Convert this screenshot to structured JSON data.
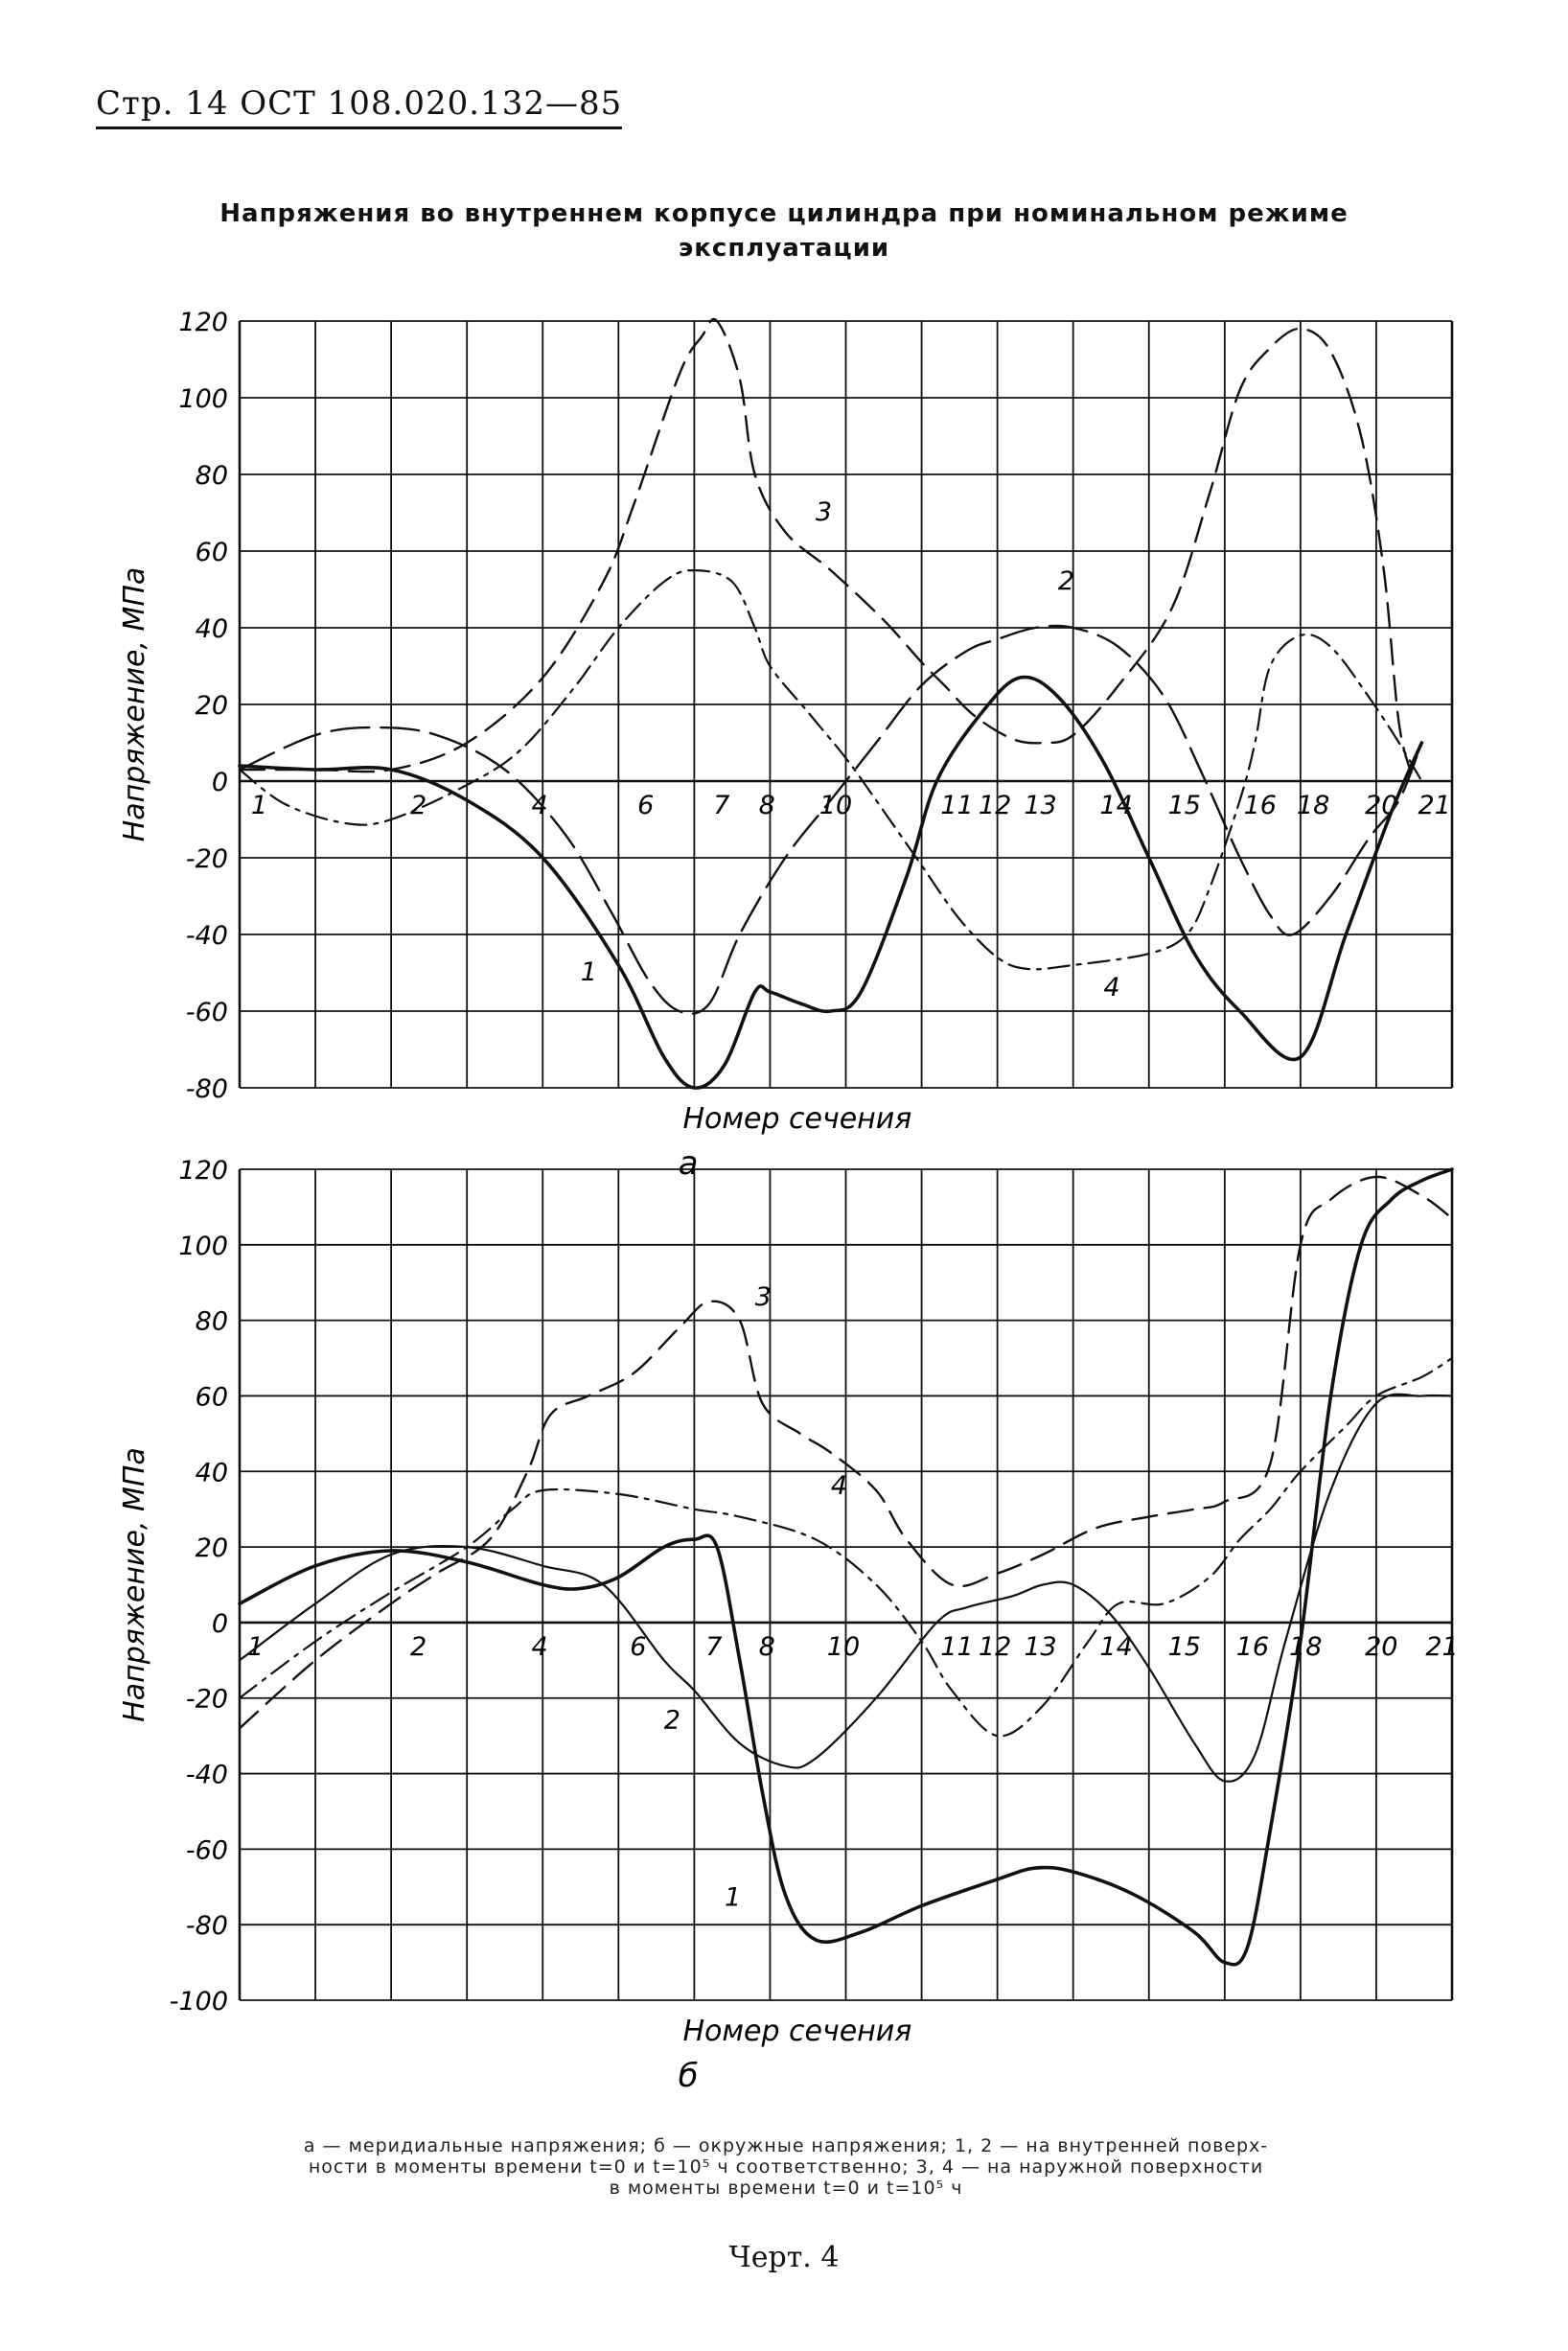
{
  "page_header": "Стр. 14 ОСТ 108.020.132—85",
  "title_line1": "Напряжения во внутреннем корпусе цилиндра при номинальном режиме",
  "title_line2": "эксплуатации",
  "caption_line1": "а — меридиальные напряжения; б — окружные напряжения; 1, 2 — на внутренней поверх-",
  "caption_line2": "ности в моменты времени t=0 и t=10⁵ ч соответственно; 3, 4 — на наружной поверхности",
  "caption_line3": "в моменты времени t=0 и t=10⁵ ч",
  "footer": "Черт. 4",
  "chart_data": [
    {
      "type": "line",
      "panel_label": "а",
      "xlabel": "Номер сечения",
      "ylabel": "Напряжение, МПа",
      "ylim": [
        -80,
        120
      ],
      "yticks": [
        120,
        100,
        80,
        60,
        40,
        20,
        0,
        -20,
        -40,
        -60,
        -80
      ],
      "grid": true,
      "x_tick_labels": [
        {
          "label": "1",
          "x": 0.1
        },
        {
          "label": "2",
          "x": 2.2
        },
        {
          "label": "4",
          "x": 3.8
        },
        {
          "label": "6",
          "x": 5.2
        },
        {
          "label": "7",
          "x": 6.2
        },
        {
          "label": "8",
          "x": 6.8
        },
        {
          "label": "10",
          "x": 7.6
        },
        {
          "label": "11",
          "x": 9.2
        },
        {
          "label": "12",
          "x": 9.7
        },
        {
          "label": "13",
          "x": 10.3
        },
        {
          "label": "14",
          "x": 11.3
        },
        {
          "label": "15",
          "x": 12.2
        },
        {
          "label": "16",
          "x": 13.2
        },
        {
          "label": "18",
          "x": 13.9
        },
        {
          "label": "20",
          "x": 14.8
        },
        {
          "label": "21",
          "x": 15.5
        }
      ],
      "series": [
        {
          "name": "1",
          "style": "solid",
          "label_at": [
            4.5,
            -52
          ],
          "points": [
            [
              0,
              4
            ],
            [
              1,
              3
            ],
            [
              2,
              3
            ],
            [
              3,
              -5
            ],
            [
              4,
              -20
            ],
            [
              5,
              -48
            ],
            [
              5.6,
              -72
            ],
            [
              6,
              -80
            ],
            [
              6.4,
              -74
            ],
            [
              6.8,
              -55
            ],
            [
              7,
              -55
            ],
            [
              7.4,
              -58
            ],
            [
              7.8,
              -60
            ],
            [
              8.2,
              -55
            ],
            [
              8.8,
              -25
            ],
            [
              9.2,
              0
            ],
            [
              9.8,
              18
            ],
            [
              10.3,
              27
            ],
            [
              10.8,
              22
            ],
            [
              11.4,
              5
            ],
            [
              12,
              -20
            ],
            [
              12.6,
              -45
            ],
            [
              13.2,
              -60
            ],
            [
              14,
              -72
            ],
            [
              14.6,
              -40
            ],
            [
              15.2,
              -8
            ],
            [
              15.6,
              10
            ]
          ]
        },
        {
          "name": "2",
          "style": "long-dash",
          "label_at": [
            10.8,
            50
          ],
          "points": [
            [
              0,
              3
            ],
            [
              1,
              12
            ],
            [
              1.8,
              14
            ],
            [
              2.6,
              12
            ],
            [
              3.5,
              3
            ],
            [
              4.3,
              -14
            ],
            [
              4.9,
              -34
            ],
            [
              5.4,
              -52
            ],
            [
              5.8,
              -60
            ],
            [
              6.2,
              -58
            ],
            [
              6.6,
              -40
            ],
            [
              7.2,
              -20
            ],
            [
              7.8,
              -5
            ],
            [
              8.4,
              10
            ],
            [
              9,
              25
            ],
            [
              9.6,
              34
            ],
            [
              10,
              37
            ],
            [
              10.5,
              40
            ],
            [
              11,
              40
            ],
            [
              11.6,
              35
            ],
            [
              12.2,
              22
            ],
            [
              12.7,
              2
            ],
            [
              13.2,
              -20
            ],
            [
              13.6,
              -35
            ],
            [
              13.9,
              -40
            ],
            [
              14.4,
              -30
            ],
            [
              14.9,
              -15
            ],
            [
              15.3,
              -5
            ],
            [
              15.6,
              10
            ]
          ]
        },
        {
          "name": "3",
          "style": "dash",
          "label_at": [
            7.6,
            68
          ],
          "points": [
            [
              0,
              3
            ],
            [
              1,
              3
            ],
            [
              2,
              3
            ],
            [
              3,
              10
            ],
            [
              4,
              27
            ],
            [
              4.8,
              52
            ],
            [
              5.2,
              72
            ],
            [
              5.8,
              106
            ],
            [
              6.1,
              116
            ],
            [
              6.3,
              120
            ],
            [
              6.6,
              105
            ],
            [
              6.8,
              80
            ],
            [
              7.2,
              65
            ],
            [
              7.8,
              55
            ],
            [
              8.5,
              42
            ],
            [
              9,
              31
            ],
            [
              9.3,
              25
            ],
            [
              9.7,
              17
            ],
            [
              10.2,
              11
            ],
            [
              10.6,
              10
            ],
            [
              11,
              12
            ],
            [
              11.6,
              25
            ],
            [
              12.3,
              45
            ],
            [
              12.8,
              75
            ],
            [
              13.2,
              102
            ],
            [
              13.6,
              113
            ],
            [
              14,
              118
            ],
            [
              14.4,
              112
            ],
            [
              14.8,
              90
            ],
            [
              15.1,
              55
            ],
            [
              15.3,
              15
            ],
            [
              15.5,
              0
            ]
          ]
        },
        {
          "name": "4",
          "style": "dash-dot",
          "label_at": [
            11.4,
            -56
          ],
          "points": [
            [
              0,
              3
            ],
            [
              0.6,
              -6
            ],
            [
              1.4,
              -11
            ],
            [
              2,
              -10
            ],
            [
              3,
              -1
            ],
            [
              3.7,
              8
            ],
            [
              4.4,
              24
            ],
            [
              5,
              40
            ],
            [
              5.6,
              52
            ],
            [
              6,
              55
            ],
            [
              6.5,
              52
            ],
            [
              6.8,
              40
            ],
            [
              7,
              30
            ],
            [
              7.5,
              18
            ],
            [
              8,
              6
            ],
            [
              8.4,
              -5
            ],
            [
              9,
              -22
            ],
            [
              9.5,
              -36
            ],
            [
              10,
              -46
            ],
            [
              10.4,
              -49
            ],
            [
              11,
              -48
            ],
            [
              12,
              -45
            ],
            [
              12.5,
              -40
            ],
            [
              12.8,
              -28
            ],
            [
              13.2,
              -5
            ],
            [
              13.4,
              10
            ],
            [
              13.6,
              30
            ],
            [
              14,
              38
            ],
            [
              14.4,
              35
            ],
            [
              14.9,
              22
            ],
            [
              15.3,
              10
            ],
            [
              15.6,
              0
            ]
          ]
        }
      ]
    },
    {
      "type": "line",
      "panel_label": "б",
      "xlabel": "Номер сечения",
      "ylabel": "Напряжение, МПа",
      "ylim": [
        -100,
        120
      ],
      "yticks": [
        120,
        100,
        80,
        60,
        40,
        20,
        0,
        -20,
        -40,
        -60,
        -80,
        -100
      ],
      "grid": true,
      "x_tick_labels": [
        {
          "label": "1",
          "x": 0.05
        },
        {
          "label": "2",
          "x": 2.2
        },
        {
          "label": "4",
          "x": 3.8
        },
        {
          "label": "6",
          "x": 5.1
        },
        {
          "label": "7",
          "x": 6.1
        },
        {
          "label": "8",
          "x": 6.8
        },
        {
          "label": "10",
          "x": 7.7
        },
        {
          "label": "11",
          "x": 9.2
        },
        {
          "label": "12",
          "x": 9.7
        },
        {
          "label": "13",
          "x": 10.3
        },
        {
          "label": "14",
          "x": 11.3
        },
        {
          "label": "15",
          "x": 12.2
        },
        {
          "label": "16",
          "x": 13.1
        },
        {
          "label": "18",
          "x": 13.8
        },
        {
          "label": "20",
          "x": 14.8
        },
        {
          "label": "21",
          "x": 15.6
        }
      ],
      "series": [
        {
          "name": "1",
          "style": "solid",
          "label_at": [
            6.4,
            -75
          ],
          "points": [
            [
              0,
              5
            ],
            [
              1,
              15
            ],
            [
              2,
              19
            ],
            [
              3,
              16
            ],
            [
              4,
              10
            ],
            [
              4.5,
              9
            ],
            [
              5,
              12
            ],
            [
              5.6,
              20
            ],
            [
              6,
              22
            ],
            [
              6.3,
              20
            ],
            [
              6.6,
              -10
            ],
            [
              6.9,
              -45
            ],
            [
              7.2,
              -72
            ],
            [
              7.6,
              -84
            ],
            [
              8.2,
              -82
            ],
            [
              9,
              -75
            ],
            [
              10,
              -68
            ],
            [
              10.5,
              -65
            ],
            [
              11,
              -66
            ],
            [
              11.8,
              -72
            ],
            [
              12.6,
              -82
            ],
            [
              13,
              -90
            ],
            [
              13.3,
              -86
            ],
            [
              13.6,
              -55
            ],
            [
              14,
              -5
            ],
            [
              14.4,
              60
            ],
            [
              14.8,
              100
            ],
            [
              15.2,
              112
            ],
            [
              15.6,
              117
            ],
            [
              16,
              120
            ]
          ]
        },
        {
          "name": "2",
          "style": "solid-thin",
          "label_at": [
            5.6,
            -28
          ],
          "points": [
            [
              0,
              -10
            ],
            [
              1,
              5
            ],
            [
              2,
              18
            ],
            [
              3,
              20
            ],
            [
              4,
              15
            ],
            [
              4.8,
              10
            ],
            [
              5.6,
              -10
            ],
            [
              6,
              -18
            ],
            [
              6.6,
              -32
            ],
            [
              7.2,
              -38
            ],
            [
              7.6,
              -36
            ],
            [
              8.4,
              -20
            ],
            [
              9.2,
              0
            ],
            [
              9.6,
              4
            ],
            [
              10.2,
              7
            ],
            [
              10.6,
              10
            ],
            [
              11,
              10
            ],
            [
              11.5,
              2
            ],
            [
              12,
              -12
            ],
            [
              12.6,
              -32
            ],
            [
              13,
              -42
            ],
            [
              13.4,
              -35
            ],
            [
              13.8,
              -5
            ],
            [
              14.4,
              35
            ],
            [
              15,
              58
            ],
            [
              15.6,
              60
            ],
            [
              16,
              60
            ]
          ]
        },
        {
          "name": "3",
          "style": "dash",
          "label_at": [
            6.8,
            84
          ],
          "points": [
            [
              0,
              -28
            ],
            [
              1,
              -10
            ],
            [
              2,
              5
            ],
            [
              2.6,
              13
            ],
            [
              3.3,
              22
            ],
            [
              3.8,
              40
            ],
            [
              4.1,
              55
            ],
            [
              4.6,
              60
            ],
            [
              5.2,
              66
            ],
            [
              5.8,
              78
            ],
            [
              6.2,
              85
            ],
            [
              6.6,
              80
            ],
            [
              6.9,
              58
            ],
            [
              7.4,
              50
            ],
            [
              7.8,
              45
            ],
            [
              8.4,
              35
            ],
            [
              8.8,
              22
            ],
            [
              9.4,
              10
            ],
            [
              10,
              13
            ],
            [
              10.6,
              18
            ],
            [
              11.3,
              25
            ],
            [
              12,
              28
            ],
            [
              12.6,
              30
            ],
            [
              13,
              32
            ],
            [
              13.6,
              42
            ],
            [
              14,
              100
            ],
            [
              14.4,
              112
            ],
            [
              15,
              118
            ],
            [
              15.6,
              113
            ],
            [
              16,
              107
            ]
          ]
        },
        {
          "name": "4",
          "style": "dash-dot",
          "label_at": [
            7.8,
            34
          ],
          "points": [
            [
              0,
              -20
            ],
            [
              1,
              -5
            ],
            [
              2,
              8
            ],
            [
              3,
              20
            ],
            [
              3.6,
              30
            ],
            [
              4,
              35
            ],
            [
              5,
              34
            ],
            [
              6,
              30
            ],
            [
              6.6,
              28
            ],
            [
              7.6,
              22
            ],
            [
              8.4,
              10
            ],
            [
              9,
              -5
            ],
            [
              9.4,
              -18
            ],
            [
              10,
              -30
            ],
            [
              10.6,
              -22
            ],
            [
              11.2,
              -5
            ],
            [
              11.6,
              5
            ],
            [
              12.2,
              5
            ],
            [
              12.8,
              12
            ],
            [
              13.2,
              22
            ],
            [
              13.6,
              30
            ],
            [
              14,
              40
            ],
            [
              14.6,
              52
            ],
            [
              15,
              60
            ],
            [
              15.6,
              65
            ],
            [
              16,
              70
            ]
          ]
        }
      ]
    }
  ]
}
